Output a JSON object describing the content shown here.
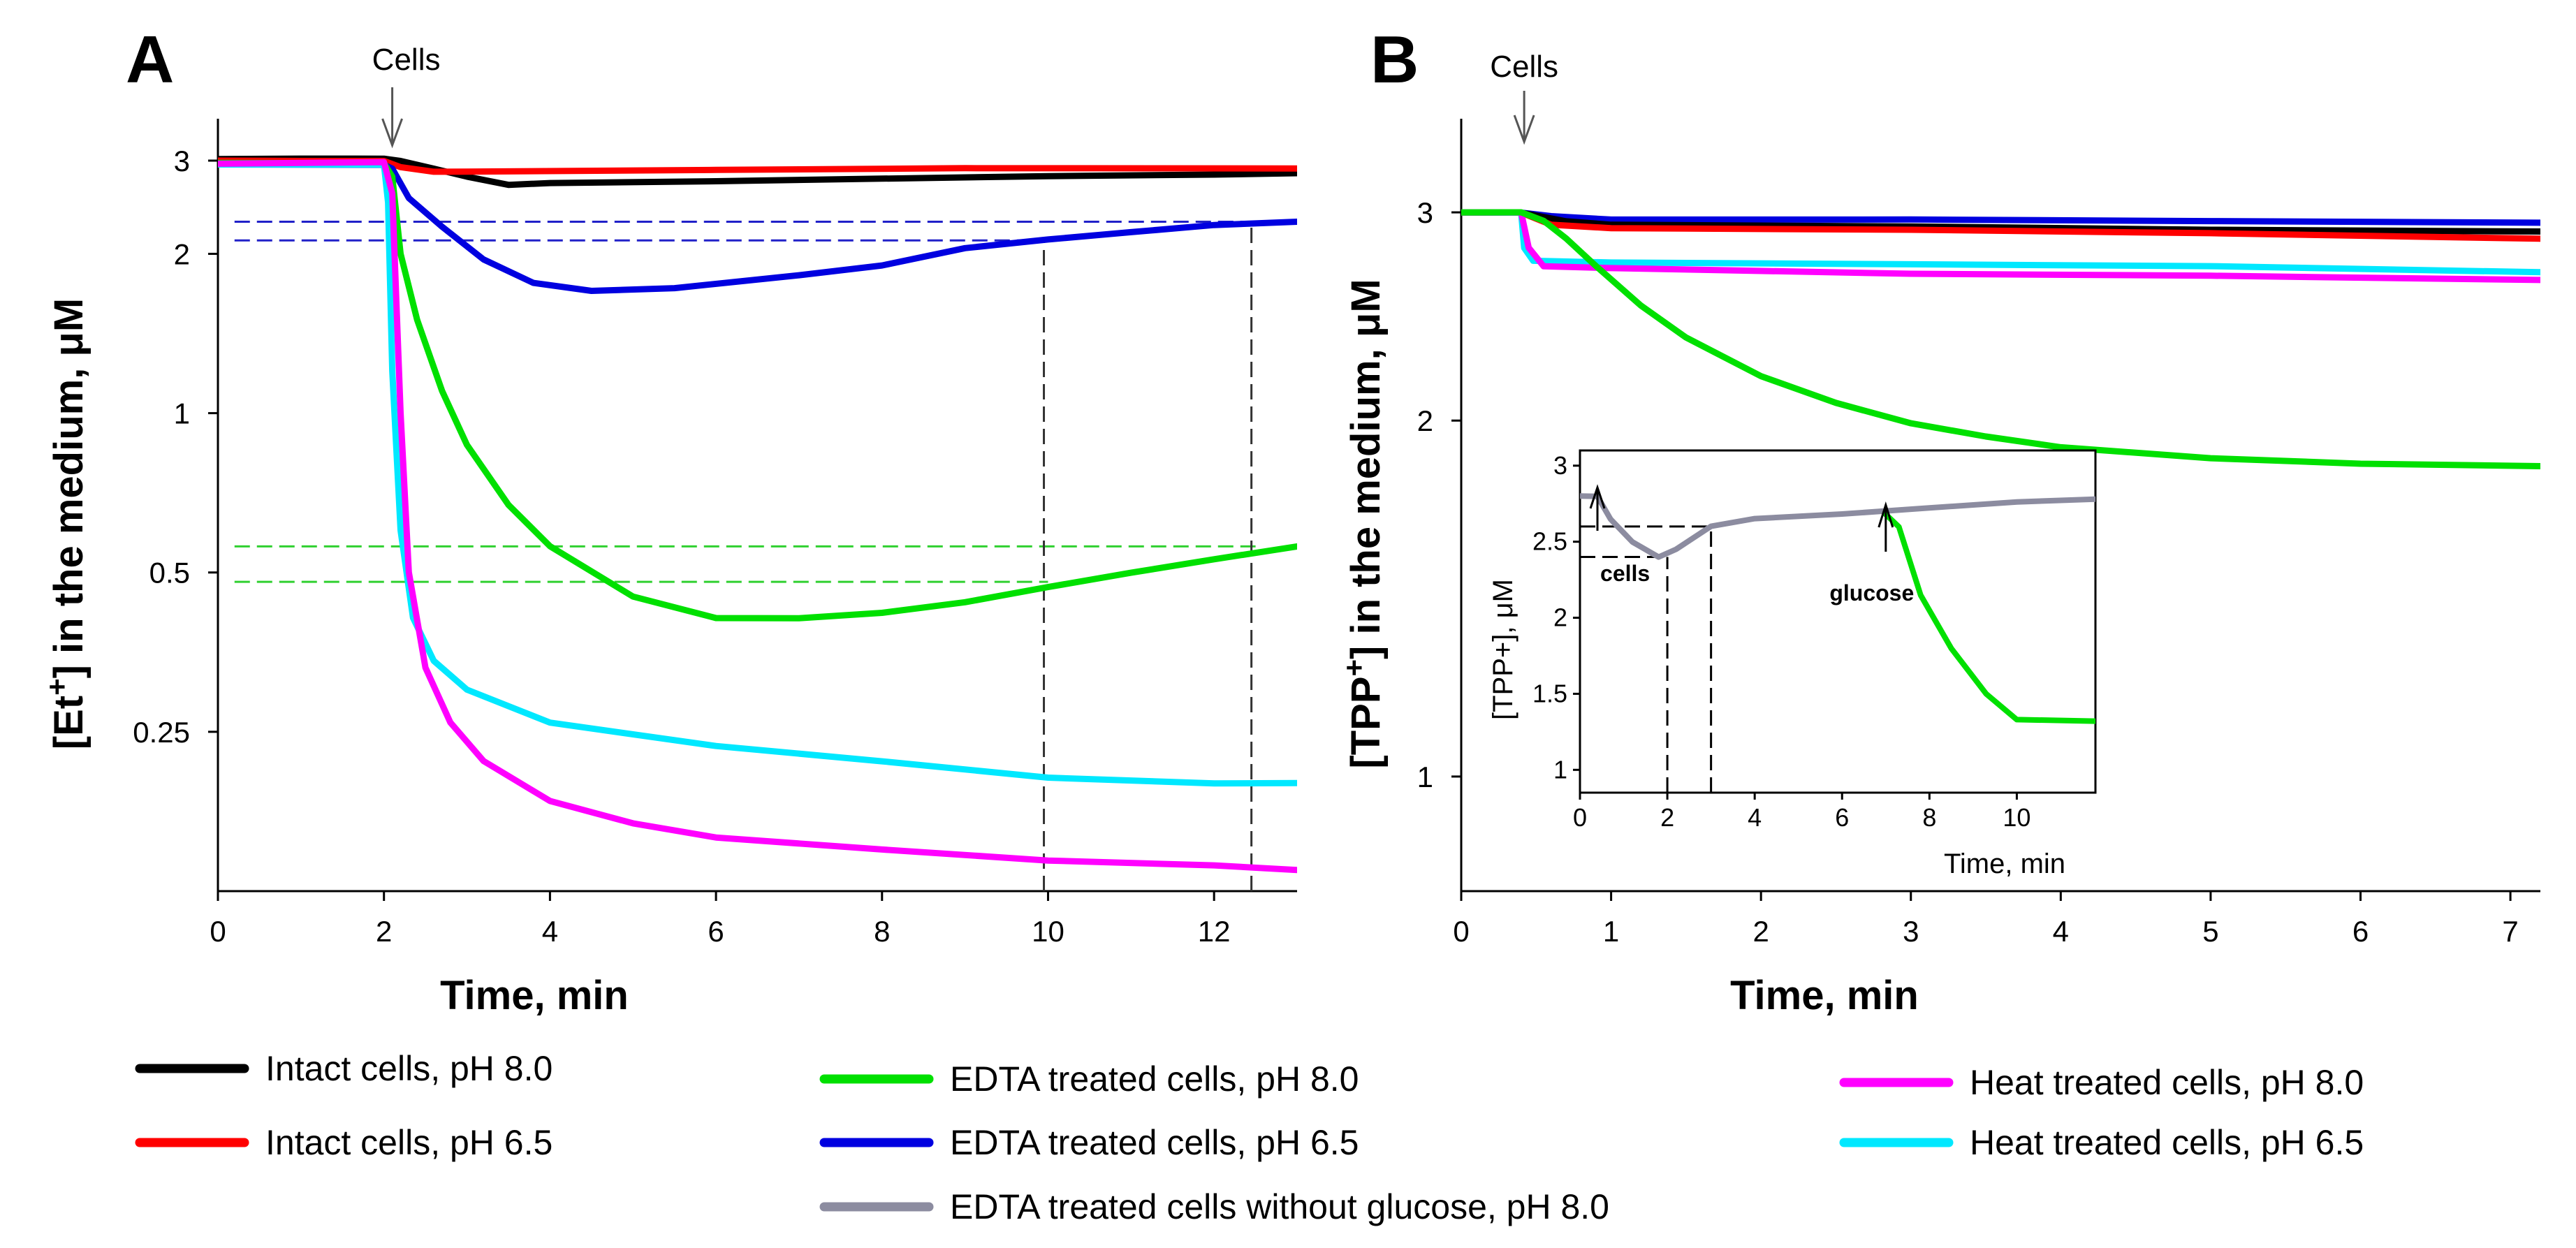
{
  "chart_data": [
    {
      "panel": "A",
      "type": "line",
      "xlabel": "Time, min",
      "ylabel": "[Et+] in the medium, μM",
      "ylabel_parts": {
        "pre": "[Et",
        "sup": "+",
        "post": "] in the medium, μM"
      },
      "xlim": [
        0,
        13
      ],
      "yscale": "log",
      "ylim": [
        0.125,
        3.6
      ],
      "xticks": [
        0,
        2,
        4,
        6,
        8,
        10,
        12
      ],
      "yticks": [
        {
          "value": 3,
          "label": "3"
        },
        {
          "value": 2,
          "label": "2"
        },
        {
          "value": 1,
          "label": "1"
        },
        {
          "value": 0.5,
          "label": "0.5"
        },
        {
          "value": 0.25,
          "label": "0.25"
        }
      ],
      "annotations": [
        {
          "text": "Cells",
          "x": 2.1,
          "type": "arrow"
        }
      ],
      "reference_lines": [
        {
          "type": "h",
          "y": 2.3,
          "x0": 0.2,
          "x1": 12.5,
          "color": "#2020c8"
        },
        {
          "type": "h",
          "y": 2.12,
          "x0": 0.2,
          "x1": 10.0,
          "color": "#2020c8"
        },
        {
          "type": "h",
          "y": 0.56,
          "x0": 0.2,
          "x1": 12.5,
          "color": "#30d030"
        },
        {
          "type": "h",
          "y": 0.48,
          "x0": 0.2,
          "x1": 10.0,
          "color": "#30d030"
        },
        {
          "type": "v",
          "x": 9.95,
          "y0": 0.125,
          "y1": 2.12,
          "color": "#333333"
        },
        {
          "type": "v",
          "x": 12.45,
          "y0": 0.125,
          "y1": 2.3,
          "color": "#333333"
        }
      ],
      "series": [
        {
          "name": "Intact cells, pH 8.0",
          "color": "#000000",
          "points": [
            [
              0,
              3.02
            ],
            [
              1,
              3.03
            ],
            [
              2,
              3.03
            ],
            [
              2.2,
              3.0
            ],
            [
              2.6,
              2.9
            ],
            [
              3,
              2.8
            ],
            [
              3.5,
              2.7
            ],
            [
              4,
              2.72
            ],
            [
              6,
              2.74
            ],
            [
              8,
              2.77
            ],
            [
              10,
              2.8
            ],
            [
              12,
              2.82
            ],
            [
              13,
              2.84
            ]
          ]
        },
        {
          "name": "Intact cells, pH 6.5",
          "color": "#ff0000",
          "points": [
            [
              0,
              3.0
            ],
            [
              1,
              3.0
            ],
            [
              2,
              3.0
            ],
            [
              2.2,
              2.92
            ],
            [
              2.6,
              2.86
            ],
            [
              3,
              2.86
            ],
            [
              6,
              2.88
            ],
            [
              9,
              2.9
            ],
            [
              13,
              2.9
            ]
          ]
        },
        {
          "name": "EDTA treated cells, pH 6.5",
          "color": "#0000e0",
          "points": [
            [
              0,
              2.95
            ],
            [
              2,
              2.95
            ],
            [
              2.1,
              2.9
            ],
            [
              2.3,
              2.55
            ],
            [
              2.7,
              2.25
            ],
            [
              3.2,
              1.95
            ],
            [
              3.8,
              1.76
            ],
            [
              4.5,
              1.7
            ],
            [
              5.5,
              1.72
            ],
            [
              7,
              1.82
            ],
            [
              8,
              1.9
            ],
            [
              9,
              2.05
            ],
            [
              10,
              2.13
            ],
            [
              11,
              2.2
            ],
            [
              12,
              2.27
            ],
            [
              13,
              2.3
            ]
          ]
        },
        {
          "name": "EDTA treated cells, pH 8.0",
          "color": "#00e000",
          "points": [
            [
              0,
              2.97
            ],
            [
              2,
              2.97
            ],
            [
              2.1,
              2.8
            ],
            [
              2.2,
              2.0
            ],
            [
              2.4,
              1.5
            ],
            [
              2.7,
              1.1
            ],
            [
              3.0,
              0.87
            ],
            [
              3.5,
              0.67
            ],
            [
              4,
              0.56
            ],
            [
              5,
              0.45
            ],
            [
              6,
              0.41
            ],
            [
              7,
              0.41
            ],
            [
              8,
              0.42
            ],
            [
              9,
              0.44
            ],
            [
              10,
              0.47
            ],
            [
              11,
              0.5
            ],
            [
              12,
              0.53
            ],
            [
              13,
              0.56
            ]
          ]
        },
        {
          "name": "Heat treated cells, pH 6.5",
          "color": "#00e8ff",
          "points": [
            [
              0,
              2.95
            ],
            [
              2,
              2.95
            ],
            [
              2.05,
              2.5
            ],
            [
              2.1,
              1.2
            ],
            [
              2.2,
              0.6
            ],
            [
              2.35,
              0.41
            ],
            [
              2.6,
              0.34
            ],
            [
              3,
              0.3
            ],
            [
              4,
              0.26
            ],
            [
              6,
              0.235
            ],
            [
              8,
              0.22
            ],
            [
              10,
              0.205
            ],
            [
              12,
              0.2
            ],
            [
              13,
              0.2
            ]
          ]
        },
        {
          "name": "Heat treated cells, pH 8.0",
          "color": "#ff00ff",
          "points": [
            [
              0,
              2.96
            ],
            [
              2,
              2.98
            ],
            [
              2.1,
              2.6
            ],
            [
              2.2,
              1.0
            ],
            [
              2.3,
              0.5
            ],
            [
              2.5,
              0.33
            ],
            [
              2.8,
              0.26
            ],
            [
              3.2,
              0.22
            ],
            [
              4,
              0.185
            ],
            [
              5,
              0.168
            ],
            [
              6,
              0.158
            ],
            [
              8,
              0.15
            ],
            [
              10,
              0.143
            ],
            [
              12,
              0.14
            ],
            [
              13,
              0.137
            ]
          ]
        }
      ]
    },
    {
      "panel": "B",
      "type": "line",
      "xlabel": "Time, min",
      "ylabel": "[TPP+] in the medium, μM",
      "ylabel_parts": {
        "pre": "[TPP",
        "sup": "+",
        "post": "] in the medium, μM"
      },
      "xlim": [
        0,
        7.2
      ],
      "yscale": "log",
      "ylim": [
        0.8,
        3.6
      ],
      "xticks": [
        0,
        1,
        2,
        3,
        4,
        5,
        6,
        7
      ],
      "yticks": [
        {
          "value": 3,
          "label": "3"
        },
        {
          "value": 2,
          "label": "2"
        },
        {
          "value": 1,
          "label": "1"
        }
      ],
      "annotations": [
        {
          "text": "Cells",
          "x": 0.42,
          "type": "arrow"
        }
      ],
      "series": [
        {
          "name": "EDTA treated cells, pH 6.5",
          "color": "#0000e0",
          "points": [
            [
              0,
              3.0
            ],
            [
              0.4,
              3.0
            ],
            [
              0.6,
              2.98
            ],
            [
              1,
              2.96
            ],
            [
              3,
              2.96
            ],
            [
              5,
              2.95
            ],
            [
              7.2,
              2.94
            ]
          ]
        },
        {
          "name": "Intact cells, pH 8.0",
          "color": "#000000",
          "points": [
            [
              0,
              3.0
            ],
            [
              0.4,
              3.0
            ],
            [
              0.7,
              2.95
            ],
            [
              1,
              2.93
            ],
            [
              3,
              2.92
            ],
            [
              5,
              2.9
            ],
            [
              7.2,
              2.89
            ]
          ]
        },
        {
          "name": "Intact cells, pH 6.5",
          "color": "#ff0000",
          "points": [
            [
              0,
              3.0
            ],
            [
              0.4,
              3.0
            ],
            [
              0.6,
              2.93
            ],
            [
              1,
              2.91
            ],
            [
              3,
              2.9
            ],
            [
              5,
              2.88
            ],
            [
              7.2,
              2.85
            ]
          ]
        },
        {
          "name": "Heat treated cells, pH 6.5",
          "color": "#00e8ff",
          "points": [
            [
              0,
              3.0
            ],
            [
              0.4,
              3.0
            ],
            [
              0.42,
              2.8
            ],
            [
              0.48,
              2.73
            ],
            [
              1,
              2.72
            ],
            [
              3,
              2.71
            ],
            [
              5,
              2.7
            ],
            [
              7.2,
              2.67
            ]
          ]
        },
        {
          "name": "Heat treated cells, pH 8.0",
          "color": "#ff00ff",
          "points": [
            [
              0,
              3.0
            ],
            [
              0.4,
              3.0
            ],
            [
              0.45,
              2.8
            ],
            [
              0.55,
              2.7
            ],
            [
              1,
              2.69
            ],
            [
              3,
              2.66
            ],
            [
              5,
              2.65
            ],
            [
              7.2,
              2.63
            ]
          ]
        },
        {
          "name": "EDTA treated cells, pH 8.0",
          "color": "#00e000",
          "points": [
            [
              0,
              3.0
            ],
            [
              0.4,
              3.0
            ],
            [
              0.55,
              2.95
            ],
            [
              0.7,
              2.85
            ],
            [
              0.9,
              2.7
            ],
            [
              1.2,
              2.5
            ],
            [
              1.5,
              2.35
            ],
            [
              2,
              2.18
            ],
            [
              2.5,
              2.07
            ],
            [
              3,
              1.99
            ],
            [
              3.5,
              1.94
            ],
            [
              4,
              1.9
            ],
            [
              5,
              1.86
            ],
            [
              6,
              1.84
            ],
            [
              7.2,
              1.83
            ]
          ]
        }
      ],
      "inset": {
        "xlabel": "Time, min",
        "ylabel": "[TPP+], μM",
        "xlim": [
          0,
          11.8
        ],
        "ylim": [
          0.85,
          3.1
        ],
        "xticks": [
          0,
          2,
          4,
          6,
          8,
          10
        ],
        "yticks": [
          1,
          1.5,
          2,
          2.5,
          3
        ],
        "annotations": [
          {
            "text": "cells",
            "x": 0.4
          },
          {
            "text": "glucose",
            "x": 7.0
          }
        ],
        "reference_lines": [
          {
            "type": "h",
            "y": 2.6,
            "x0": 0,
            "x1": 3.0
          },
          {
            "type": "h",
            "y": 2.4,
            "x0": 0,
            "x1": 2.0
          },
          {
            "type": "v",
            "x": 2.0,
            "y0": 0.85,
            "y1": 2.4
          },
          {
            "type": "v",
            "x": 3.0,
            "y0": 0.85,
            "y1": 2.6
          }
        ],
        "series": [
          {
            "name": "EDTA treated cells without glucose, pH 8.0",
            "color": "#8c8ca0",
            "points": [
              [
                0,
                2.8
              ],
              [
                0.4,
                2.8
              ],
              [
                0.7,
                2.65
              ],
              [
                1.2,
                2.5
              ],
              [
                1.8,
                2.4
              ],
              [
                2.2,
                2.45
              ],
              [
                3,
                2.6
              ],
              [
                4,
                2.65
              ],
              [
                6,
                2.68
              ],
              [
                8,
                2.72
              ],
              [
                10,
                2.76
              ],
              [
                11.8,
                2.78
              ]
            ]
          },
          {
            "name": "EDTA treated cells, pH 8.0",
            "color": "#00e000",
            "points": [
              [
                7.0,
                2.68
              ],
              [
                7.3,
                2.6
              ],
              [
                7.8,
                2.15
              ],
              [
                8.5,
                1.8
              ],
              [
                9.3,
                1.5
              ],
              [
                10,
                1.33
              ],
              [
                11.8,
                1.32
              ]
            ]
          }
        ]
      }
    }
  ],
  "legend": [
    {
      "label": "Intact cells, pH 8.0",
      "color": "#000000"
    },
    {
      "label": "Intact cells, pH 6.5",
      "color": "#ff0000"
    },
    {
      "label": "EDTA treated cells, pH 8.0",
      "color": "#00e000"
    },
    {
      "label": "EDTA treated cells, pH 6.5",
      "color": "#0000e0"
    },
    {
      "label": "EDTA treated cells without glucose, pH 8.0",
      "color": "#8c8ca0"
    },
    {
      "label": "Heat treated cells, pH 8.0",
      "color": "#ff00ff"
    },
    {
      "label": "Heat treated cells, pH 6.5",
      "color": "#00e8ff"
    }
  ]
}
